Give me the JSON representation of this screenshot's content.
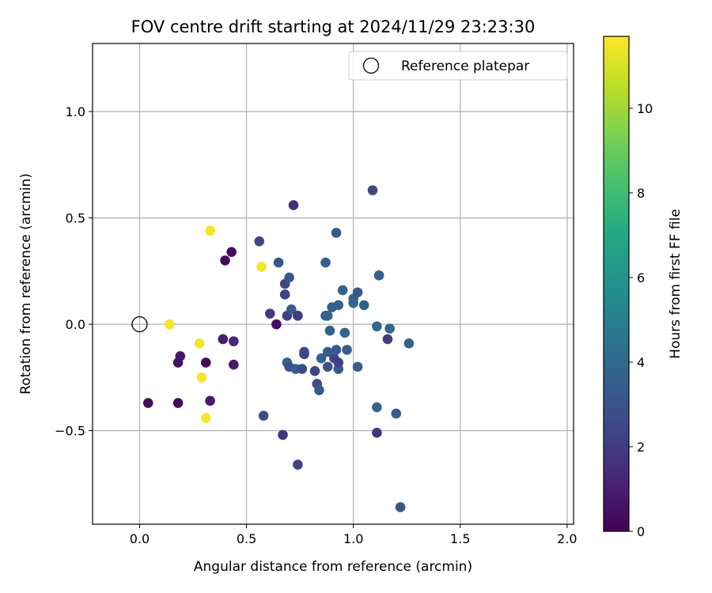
{
  "chart_data": {
    "type": "scatter",
    "title": "FOV centre drift starting at 2024/11/29 23:23:30",
    "xlabel": "Angular distance from reference (arcmin)",
    "ylabel": "Rotation from reference (arcmin)",
    "xlim": [
      -0.22,
      2.03
    ],
    "ylim": [
      -0.94,
      1.32
    ],
    "xticks": [
      "0.0",
      "0.5",
      "1.0",
      "1.5",
      "2.0"
    ],
    "yticks": [
      "−0.5",
      "0.0",
      "0.5",
      "1.0"
    ],
    "xtick_values": [
      0.0,
      0.5,
      1.0,
      1.5,
      2.0
    ],
    "ytick_values": [
      -0.5,
      0.0,
      0.5,
      1.0
    ],
    "grid": true,
    "legend_position": "top-right",
    "legend": {
      "label": "Reference platepar"
    },
    "reference": {
      "x": 0.0,
      "y": 0.0
    },
    "colorbar": {
      "label": "Hours from first FF file",
      "min": 0,
      "max": 11.7,
      "ticks": [
        "0",
        "2",
        "4",
        "6",
        "8",
        "10"
      ],
      "tick_values": [
        0,
        2,
        4,
        6,
        8,
        10
      ],
      "colormap": "viridis"
    },
    "points": [
      {
        "x": 0.04,
        "y": -0.37,
        "h": 0.3
      },
      {
        "x": 0.18,
        "y": -0.37,
        "h": 0.3
      },
      {
        "x": 0.18,
        "y": -0.18,
        "h": 0.6
      },
      {
        "x": 0.19,
        "y": -0.15,
        "h": 0.8
      },
      {
        "x": 0.31,
        "y": -0.18,
        "h": 0.4
      },
      {
        "x": 0.33,
        "y": -0.36,
        "h": 0.9
      },
      {
        "x": 0.4,
        "y": 0.3,
        "h": 0.4
      },
      {
        "x": 0.43,
        "y": 0.34,
        "h": 0.4
      },
      {
        "x": 0.39,
        "y": -0.07,
        "h": 1.0
      },
      {
        "x": 0.44,
        "y": -0.08,
        "h": 1.3
      },
      {
        "x": 0.44,
        "y": -0.19,
        "h": 0.8
      },
      {
        "x": 0.64,
        "y": 0.0,
        "h": 0.4
      },
      {
        "x": 0.72,
        "y": 0.56,
        "h": 1.5
      },
      {
        "x": 0.56,
        "y": 0.39,
        "h": 2.4
      },
      {
        "x": 0.58,
        "y": -0.43,
        "h": 2.8
      },
      {
        "x": 0.67,
        "y": -0.52,
        "h": 1.8
      },
      {
        "x": 0.74,
        "y": -0.66,
        "h": 2.3
      },
      {
        "x": 0.61,
        "y": 0.05,
        "h": 2.1
      },
      {
        "x": 0.65,
        "y": 0.29,
        "h": 3.2
      },
      {
        "x": 0.68,
        "y": 0.19,
        "h": 2.4
      },
      {
        "x": 0.68,
        "y": 0.14,
        "h": 2.2
      },
      {
        "x": 0.69,
        "y": 0.04,
        "h": 2.1
      },
      {
        "x": 0.7,
        "y": 0.22,
        "h": 3.2
      },
      {
        "x": 0.71,
        "y": 0.07,
        "h": 3.4
      },
      {
        "x": 0.74,
        "y": 0.04,
        "h": 3.5
      },
      {
        "x": 0.74,
        "y": 0.04,
        "h": 2.0
      },
      {
        "x": 0.69,
        "y": -0.18,
        "h": 3.6
      },
      {
        "x": 0.7,
        "y": -0.2,
        "h": 2.9
      },
      {
        "x": 0.73,
        "y": -0.21,
        "h": 3.5
      },
      {
        "x": 0.76,
        "y": -0.21,
        "h": 2.7
      },
      {
        "x": 0.77,
        "y": -0.14,
        "h": 2.0
      },
      {
        "x": 0.77,
        "y": -0.13,
        "h": 2.5
      },
      {
        "x": 0.82,
        "y": -0.22,
        "h": 2.4
      },
      {
        "x": 0.83,
        "y": -0.28,
        "h": 2.7
      },
      {
        "x": 0.84,
        "y": -0.31,
        "h": 3.3
      },
      {
        "x": 0.85,
        "y": -0.16,
        "h": 3.7
      },
      {
        "x": 0.87,
        "y": 0.29,
        "h": 3.5
      },
      {
        "x": 0.87,
        "y": 0.04,
        "h": 3.4
      },
      {
        "x": 0.88,
        "y": 0.04,
        "h": 3.8
      },
      {
        "x": 0.88,
        "y": -0.13,
        "h": 3.4
      },
      {
        "x": 0.88,
        "y": -0.2,
        "h": 2.9
      },
      {
        "x": 0.89,
        "y": -0.03,
        "h": 3.6
      },
      {
        "x": 0.9,
        "y": 0.08,
        "h": 3.5
      },
      {
        "x": 0.91,
        "y": -0.16,
        "h": 2.4
      },
      {
        "x": 0.92,
        "y": 0.43,
        "h": 3.2
      },
      {
        "x": 0.92,
        "y": -0.12,
        "h": 3.3
      },
      {
        "x": 0.93,
        "y": -0.21,
        "h": 3.4
      },
      {
        "x": 0.93,
        "y": -0.18,
        "h": 2.2
      },
      {
        "x": 0.93,
        "y": 0.09,
        "h": 3.5
      },
      {
        "x": 0.95,
        "y": 0.16,
        "h": 3.7
      },
      {
        "x": 0.96,
        "y": -0.04,
        "h": 3.8
      },
      {
        "x": 0.97,
        "y": -0.12,
        "h": 3.4
      },
      {
        "x": 1.0,
        "y": 0.1,
        "h": 3.9
      },
      {
        "x": 1.0,
        "y": 0.12,
        "h": 3.6
      },
      {
        "x": 1.02,
        "y": 0.15,
        "h": 3.2
      },
      {
        "x": 1.02,
        "y": -0.2,
        "h": 3.5
      },
      {
        "x": 1.05,
        "y": 0.09,
        "h": 3.7
      },
      {
        "x": 1.09,
        "y": 0.63,
        "h": 2.6
      },
      {
        "x": 1.11,
        "y": -0.01,
        "h": 3.8
      },
      {
        "x": 1.11,
        "y": -0.39,
        "h": 3.9
      },
      {
        "x": 1.11,
        "y": -0.51,
        "h": 1.8
      },
      {
        "x": 1.12,
        "y": 0.23,
        "h": 3.5
      },
      {
        "x": 1.16,
        "y": -0.07,
        "h": 2.1
      },
      {
        "x": 1.17,
        "y": -0.02,
        "h": 3.8
      },
      {
        "x": 1.2,
        "y": -0.42,
        "h": 3.6
      },
      {
        "x": 1.22,
        "y": -0.86,
        "h": 3.0
      },
      {
        "x": 1.26,
        "y": -0.09,
        "h": 3.7
      },
      {
        "x": 0.14,
        "y": 0.0,
        "h": 11.5
      },
      {
        "x": 0.28,
        "y": -0.09,
        "h": 11.5
      },
      {
        "x": 0.29,
        "y": -0.25,
        "h": 11.6
      },
      {
        "x": 0.31,
        "y": -0.44,
        "h": 11.6
      },
      {
        "x": 0.33,
        "y": 0.44,
        "h": 11.5
      },
      {
        "x": 0.57,
        "y": 0.27,
        "h": 11.6
      }
    ]
  }
}
